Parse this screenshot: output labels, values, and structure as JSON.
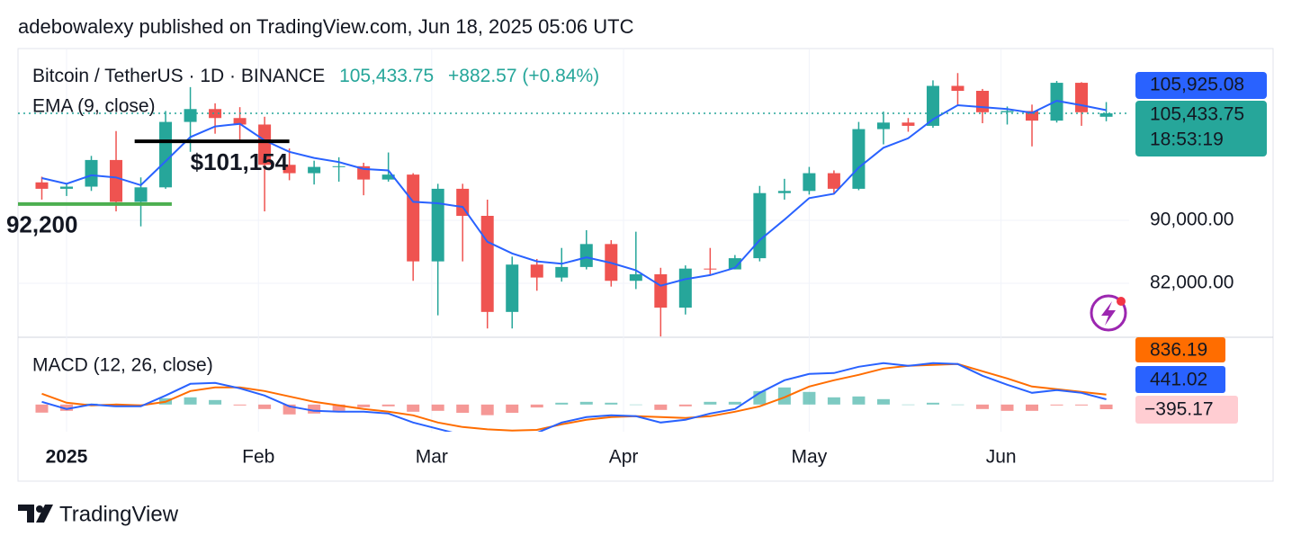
{
  "header": "adebowalexy published on TradingView.com, Jun 18, 2025 05:06 UTC",
  "brand": "TradingView",
  "chart_data": {
    "type": "candlestick",
    "title": "Bitcoin / TetherUS · 1D · BINANCE",
    "price_label": {
      "value": 105433.75,
      "label": "105,433.75"
    },
    "change_label": "+882.57 (+0.84%)",
    "countdown": "18:53:19",
    "up_color": "#26a69a",
    "down_color": "#ef5350",
    "yscale": "log",
    "grid": true,
    "ylim": [
      75710,
      115875
    ],
    "yticks": [
      {
        "value": 82000,
        "label": "82,000.00"
      },
      {
        "value": 90000,
        "label": "90,000.00"
      }
    ],
    "xlim": [
      -7.85,
      171.7
    ],
    "xticks": [
      {
        "value": 0,
        "label": "2025"
      },
      {
        "value": 31,
        "label": "Feb"
      },
      {
        "value": 59,
        "label": "Mar"
      },
      {
        "value": 90,
        "label": "Apr"
      },
      {
        "value": 120,
        "label": "May"
      },
      {
        "value": 151,
        "label": "Jun"
      }
    ],
    "x": [
      -4,
      0,
      4,
      8,
      12,
      16,
      20,
      24,
      28,
      32,
      36,
      40,
      44,
      48,
      52,
      56,
      60,
      64,
      68,
      72,
      76,
      80,
      84,
      88,
      92,
      96,
      100,
      104,
      108,
      112,
      116,
      120,
      124,
      128,
      132,
      136,
      140,
      144,
      148,
      152,
      156,
      160,
      164,
      168
    ],
    "open": [
      95200,
      94300,
      94600,
      98400,
      92500,
      94500,
      104100,
      106100,
      104700,
      103700,
      97700,
      96500,
      97400,
      97500,
      95600,
      96300,
      84700,
      94300,
      90600,
      78600,
      84300,
      82700,
      84000,
      86900,
      82300,
      83100,
      79100,
      83800,
      83700,
      85100,
      93700,
      94000,
      96500,
      94300,
      103000,
      104000,
      103500,
      109800,
      109000,
      105600,
      105800,
      104300,
      110300,
      104900
    ],
    "high": [
      96000,
      95000,
      99000,
      102700,
      95900,
      105800,
      109600,
      107000,
      106400,
      104900,
      100100,
      98300,
      98800,
      98000,
      99500,
      96500,
      95000,
      95000,
      92800,
      85300,
      85000,
      86400,
      88700,
      87400,
      88500,
      83900,
      84200,
      86400,
      85500,
      94700,
      95700,
      97400,
      96900,
      104100,
      105700,
      104700,
      110700,
      111900,
      109300,
      106500,
      106800,
      110600,
      110400,
      107200
    ],
    "low": [
      92800,
      93300,
      94000,
      91200,
      89200,
      94300,
      99600,
      102300,
      101300,
      91200,
      95500,
      94900,
      95300,
      93400,
      95300,
      82300,
      78200,
      84700,
      76700,
      76700,
      81100,
      82200,
      83700,
      81600,
      81300,
      75800,
      78300,
      83100,
      83700,
      84700,
      92800,
      93500,
      93600,
      94100,
      100700,
      102600,
      103200,
      106700,
      103900,
      103700,
      100400,
      104000,
      103500,
      104200
    ],
    "close": [
      94300,
      94600,
      98400,
      92500,
      94500,
      104100,
      106100,
      104700,
      103700,
      97700,
      96500,
      97400,
      97500,
      95600,
      96300,
      84700,
      94300,
      90600,
      78600,
      84300,
      82700,
      84000,
      86900,
      82300,
      83100,
      79100,
      83800,
      83700,
      85100,
      93700,
      94000,
      96500,
      94300,
      103000,
      104000,
      103500,
      109800,
      109000,
      105600,
      105800,
      104300,
      110300,
      105600,
      105433.75
    ],
    "ema": {
      "name": "EMA (9, close)",
      "color": "#2962ff",
      "values": [
        95800,
        95000,
        96200,
        95900,
        94800,
        98200,
        101800,
        103400,
        103800,
        101300,
        99600,
        98700,
        98100,
        97100,
        96900,
        92500,
        92300,
        91800,
        87200,
        85700,
        84700,
        84400,
        85200,
        84500,
        83600,
        81700,
        82500,
        83000,
        83900,
        87400,
        90100,
        93000,
        93600,
        97300,
        100200,
        101600,
        104500,
        106700,
        106400,
        106100,
        105500,
        107400,
        106700,
        105925.08
      ],
      "last": {
        "value": 105925.08,
        "label": "105,925.08"
      }
    },
    "annotations": [
      {
        "value": 101154,
        "label": "$101,154",
        "color": "#000000",
        "x": [
          11,
          36
        ]
      },
      {
        "value": 92200,
        "label": "92,200",
        "color": "#4caf50",
        "x": [
          -8,
          17
        ]
      }
    ],
    "macd": {
      "title": "MACD (12, 26, close)",
      "ylim": [
        -2300,
        5700
      ],
      "macd_line": {
        "color": "#2962ff",
        "values": [
          229,
          -381,
          0,
          -152,
          -152,
          762,
          1753,
          1829,
          1372,
          762,
          -152,
          -533,
          -610,
          -610,
          -762,
          -1524,
          -2057,
          -2600,
          -3000,
          -2900,
          -2400,
          -1524,
          -1067,
          -914,
          -990,
          -1524,
          -1295,
          -762,
          -381,
          990,
          2057,
          2591,
          2667,
          3200,
          3505,
          3277,
          3505,
          3429,
          2438,
          1676,
          990,
          1219,
          990,
          441.02
        ],
        "last": {
          "value": 441.02,
          "label": "441.02"
        }
      },
      "signal": {
        "color": "#ff6d00",
        "values": [
          914,
          152,
          -76,
          0,
          -76,
          229,
          1143,
          1448,
          1448,
          1143,
          686,
          229,
          -76,
          -381,
          -610,
          -914,
          -1524,
          -1900,
          -2100,
          -2200,
          -2150,
          -1676,
          -1295,
          -1067,
          -990,
          -1067,
          -1143,
          -990,
          -610,
          -152,
          610,
          1524,
          2057,
          2515,
          3048,
          3277,
          3353,
          3429,
          2819,
          2210,
          1524,
          1295,
          1067,
          836.19
        ],
        "last": {
          "value": 836.19,
          "label": "836.19"
        }
      },
      "histogram": {
        "up_color": "#26a69a",
        "down_color": "#ef5350",
        "values": [
          -685,
          -533,
          76,
          -152,
          -76,
          533,
          610,
          381,
          -76,
          -381,
          -838,
          -762,
          -534,
          -229,
          -152,
          -610,
          -533,
          -700,
          -900,
          -700,
          -250,
          152,
          228,
          153,
          0,
          -457,
          -152,
          228,
          229,
          1142,
          1447,
          1067,
          610,
          685,
          457,
          0,
          152,
          0,
          -381,
          -534,
          -534,
          -76,
          -77,
          -395.17
        ],
        "last": {
          "value": -395.17,
          "label": "−395.17"
        }
      }
    }
  }
}
